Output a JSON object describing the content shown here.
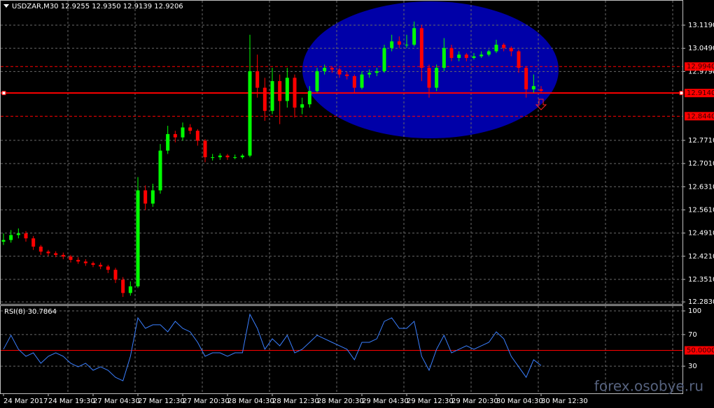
{
  "watermark": "forex.osobye.ru",
  "chart_data": [
    {
      "type": "candlestick",
      "title": "USDZAR,M30 12.9255 12.9350 12.9139 12.9206",
      "up_color": "#00ff00",
      "down_color": "#ff0000",
      "grid": true,
      "categories": [
        "24 Mar 2017",
        null,
        null,
        null,
        null,
        null,
        "24 Mar 19:30",
        null,
        null,
        null,
        null,
        null,
        "27 Mar 04:30",
        null,
        null,
        null,
        null,
        null,
        "27 Mar 12:30",
        null,
        null,
        null,
        null,
        null,
        "27 Mar 20:30",
        null,
        null,
        null,
        null,
        null,
        "28 Mar 04:30",
        null,
        null,
        null,
        null,
        null,
        "28 Mar 12:30",
        null,
        null,
        null,
        null,
        null,
        "28 Mar 20:30",
        null,
        null,
        null,
        null,
        null,
        "29 Mar 04:30",
        null,
        null,
        null,
        null,
        null,
        "29 Mar 12:30",
        null,
        null,
        null,
        null,
        null,
        "29 Mar 20:30",
        null,
        null,
        null,
        null,
        null,
        "30 Mar 04:30",
        null,
        null,
        null,
        null,
        null,
        "30 Mar 12:30"
      ],
      "ohlc": [
        [
          12.465,
          12.49,
          12.455,
          12.47
        ],
        [
          12.47,
          12.5,
          12.462,
          12.485
        ],
        [
          12.485,
          12.505,
          12.475,
          12.49
        ],
        [
          12.49,
          12.497,
          12.465,
          12.475
        ],
        [
          12.475,
          12.482,
          12.44,
          12.45
        ],
        [
          12.45,
          12.455,
          12.425,
          12.435
        ],
        [
          12.435,
          12.44,
          12.422,
          12.43
        ],
        [
          12.43,
          12.436,
          12.418,
          12.425
        ],
        [
          12.425,
          12.432,
          12.412,
          12.42
        ],
        [
          12.42,
          12.425,
          12.402,
          12.41
        ],
        [
          12.41,
          12.418,
          12.398,
          12.405
        ],
        [
          12.405,
          12.412,
          12.392,
          12.4
        ],
        [
          12.4,
          12.405,
          12.388,
          12.395
        ],
        [
          12.395,
          12.402,
          12.382,
          12.39
        ],
        [
          12.39,
          12.395,
          12.37,
          12.38
        ],
        [
          12.38,
          12.386,
          12.34,
          12.35
        ],
        [
          12.35,
          12.358,
          12.298,
          12.31
        ],
        [
          12.31,
          12.345,
          12.302,
          12.33
        ],
        [
          12.33,
          12.66,
          12.325,
          12.62
        ],
        [
          12.62,
          12.635,
          12.56,
          12.58
        ],
        [
          12.58,
          12.64,
          12.57,
          12.62
        ],
        [
          12.62,
          12.76,
          12.61,
          12.74
        ],
        [
          12.74,
          12.815,
          12.73,
          12.79
        ],
        [
          12.79,
          12.8,
          12.765,
          12.78
        ],
        [
          12.78,
          12.825,
          12.77,
          12.81
        ],
        [
          12.81,
          12.82,
          12.79,
          12.8
        ],
        [
          12.8,
          12.805,
          12.755,
          12.77
        ],
        [
          12.77,
          12.775,
          12.705,
          12.72
        ],
        [
          12.72,
          12.73,
          12.71,
          12.72
        ],
        [
          12.72,
          12.732,
          12.712,
          12.725
        ],
        [
          12.725,
          12.73,
          12.712,
          12.72
        ],
        [
          12.72,
          12.728,
          12.714,
          12.72
        ],
        [
          12.72,
          12.73,
          12.715,
          12.725
        ],
        [
          12.725,
          13.09,
          12.72,
          12.98
        ],
        [
          12.98,
          13.03,
          12.9,
          12.93
        ],
        [
          12.93,
          12.96,
          12.83,
          12.86
        ],
        [
          12.86,
          12.99,
          12.85,
          12.95
        ],
        [
          12.95,
          12.97,
          12.82,
          12.89
        ],
        [
          12.89,
          12.99,
          12.87,
          12.96
        ],
        [
          12.96,
          12.97,
          12.84,
          12.87
        ],
        [
          12.87,
          12.9,
          12.85,
          12.88
        ],
        [
          12.88,
          12.935,
          12.87,
          12.92
        ],
        [
          12.92,
          12.99,
          12.915,
          12.98
        ],
        [
          12.98,
          13.0,
          12.97,
          12.99
        ],
        [
          12.99,
          12.995,
          12.975,
          12.985
        ],
        [
          12.985,
          12.99,
          12.96,
          12.97
        ],
        [
          12.97,
          12.978,
          12.955,
          12.965
        ],
        [
          12.965,
          12.97,
          12.915,
          12.93
        ],
        [
          12.93,
          12.98,
          12.925,
          12.97
        ],
        [
          12.97,
          12.985,
          12.96,
          12.975
        ],
        [
          12.975,
          12.99,
          12.965,
          12.98
        ],
        [
          12.98,
          13.06,
          12.975,
          13.05
        ],
        [
          13.05,
          13.09,
          13.04,
          13.07
        ],
        [
          13.07,
          13.085,
          13.05,
          13.06
        ],
        [
          13.06,
          13.09,
          13.05,
          13.06
        ],
        [
          13.06,
          13.13,
          13.055,
          13.11
        ],
        [
          13.11,
          13.12,
          12.95,
          12.99
        ],
        [
          12.99,
          13.0,
          12.9,
          12.93
        ],
        [
          12.93,
          13.0,
          12.92,
          12.99
        ],
        [
          12.99,
          13.08,
          12.98,
          13.05
        ],
        [
          13.05,
          13.06,
          13.01,
          13.02
        ],
        [
          13.02,
          13.04,
          13.01,
          13.03
        ],
        [
          13.03,
          13.035,
          13.01,
          13.02
        ],
        [
          13.02,
          13.035,
          13.015,
          13.025
        ],
        [
          13.025,
          13.04,
          13.02,
          13.03
        ],
        [
          13.03,
          13.045,
          13.025,
          13.04
        ],
        [
          13.04,
          13.075,
          13.035,
          13.06
        ],
        [
          13.06,
          13.065,
          13.04,
          13.05
        ],
        [
          13.05,
          13.055,
          13.025,
          13.04
        ],
        [
          13.04,
          13.045,
          12.975,
          12.99
        ],
        [
          12.99,
          12.995,
          12.9,
          12.925
        ],
        [
          12.925,
          12.97,
          12.915,
          12.935
        ],
        [
          12.9255,
          12.935,
          12.9139,
          12.9206
        ]
      ],
      "ylim": [
        12.277,
        13.195
      ],
      "yticks": [
        {
          "value": 13.119,
          "label": "13.1190"
        },
        {
          "value": 13.049,
          "label": "13.0490"
        },
        {
          "value": 12.979,
          "label": "12.9790"
        },
        {
          "value": 12.771,
          "label": "12.7710"
        },
        {
          "value": 12.701,
          "label": "12.7010"
        },
        {
          "value": 12.631,
          "label": "12.6310"
        },
        {
          "value": 12.561,
          "label": "12.5610"
        },
        {
          "value": 12.491,
          "label": "12.4910"
        },
        {
          "value": 12.421,
          "label": "12.4210"
        },
        {
          "value": 12.351,
          "label": "12.3510"
        },
        {
          "value": 12.283,
          "label": "12.2830"
        }
      ],
      "levels": [
        {
          "value": 12.994,
          "label": "12.9940",
          "style": "dashed",
          "color": "#ff0000"
        },
        {
          "value": 12.914,
          "label": "12.9140",
          "style": "solid",
          "color": "#ff0000"
        },
        {
          "value": 12.844,
          "label": "12.8440",
          "style": "dashed",
          "color": "#ff0000"
        }
      ]
    },
    {
      "type": "line",
      "title": "RSI(8) 30.7864",
      "color": "#3a7fff",
      "values": [
        51.4,
        69.1,
        51.4,
        42.5,
        46.9,
        33.7,
        42.5,
        46.9,
        42.5,
        33.7,
        29.2,
        33.7,
        24.8,
        29.2,
        24.8,
        15.9,
        11.5,
        42.5,
        91.2,
        77.9,
        82.4,
        82.4,
        73.5,
        86.8,
        77.9,
        73.5,
        60.2,
        42.5,
        46.9,
        46.9,
        42.5,
        46.9,
        46.9,
        95.7,
        77.9,
        51.4,
        64.7,
        55.8,
        69.1,
        46.9,
        51.4,
        60.2,
        69.1,
        64.7,
        60.2,
        55.8,
        51.4,
        38.1,
        60.2,
        60.2,
        64.7,
        86.8,
        91.2,
        77.9,
        77.9,
        86.8,
        42.5,
        24.8,
        51.4,
        69.1,
        46.9,
        51.4,
        55.8,
        51.4,
        55.8,
        60.2,
        73.5,
        64.7,
        42.5,
        29.2,
        15.9,
        38.1,
        30.8
      ],
      "ylim": [
        -4.4,
        107.1
      ],
      "yticks": [
        100,
        70,
        30
      ],
      "levels": [
        {
          "value": 50,
          "label": "50.0000",
          "style": "solid",
          "color": "#ff0000"
        }
      ]
    }
  ]
}
